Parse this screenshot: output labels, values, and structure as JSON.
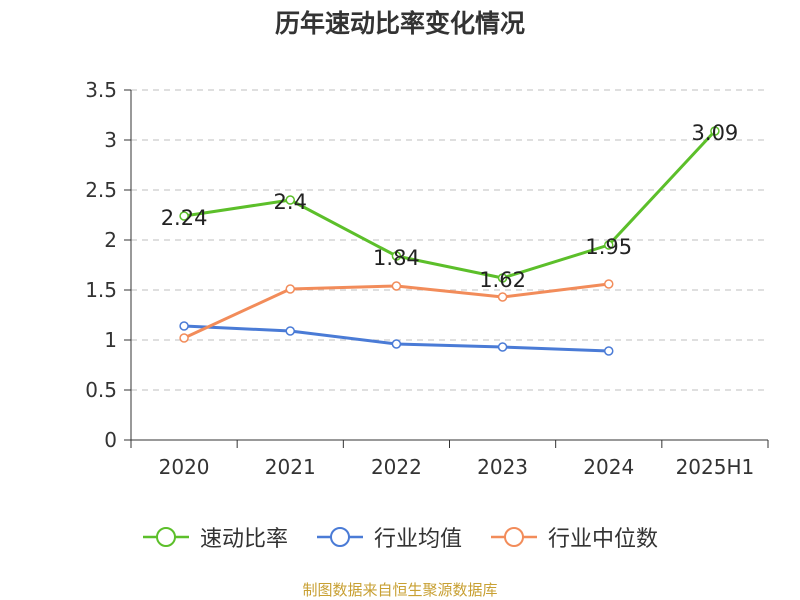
{
  "title": "历年速动比率变化情况",
  "source": "制图数据来自恒生聚源数据库",
  "chart_data": {
    "type": "line",
    "title": "历年速动比率变化情况",
    "categories": [
      "2020",
      "2021",
      "2022",
      "2023",
      "2024",
      "2025H1"
    ],
    "yticks": [
      "0",
      "0.5",
      "1",
      "1.5",
      "2",
      "2.5",
      "3",
      "3.5"
    ],
    "ylim": [
      0,
      3.5
    ],
    "grid": true,
    "legend_position": "bottom",
    "series": [
      {
        "name": "速动比率",
        "color": "#5cbf2a",
        "values": [
          2.24,
          2.4,
          1.84,
          1.62,
          1.95,
          3.09
        ],
        "labels": [
          "2.24",
          "2.4",
          "1.84",
          "1.62",
          "1.95",
          "3.09"
        ],
        "show_labels": true
      },
      {
        "name": "行业均值",
        "color": "#4a7bd6",
        "values": [
          1.14,
          1.09,
          0.96,
          0.93,
          0.89,
          null
        ],
        "show_labels": false
      },
      {
        "name": "行业中位数",
        "color": "#f28c5a",
        "values": [
          1.02,
          1.51,
          1.54,
          1.43,
          1.56,
          null
        ],
        "show_labels": false
      }
    ]
  }
}
